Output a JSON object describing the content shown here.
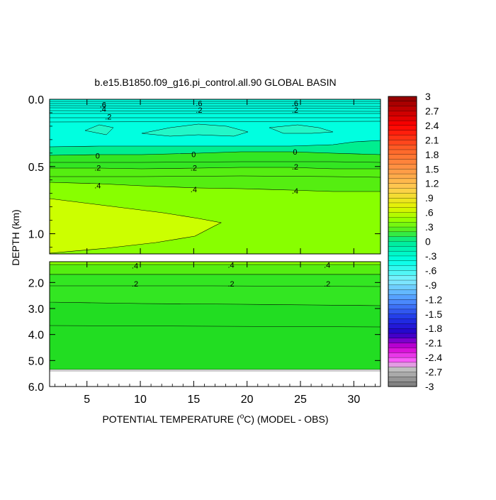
{
  "chart_data": {
    "type": "contour",
    "title": "b.e15.B1850.f09_g16.pi_control.all.90 GLOBAL BASIN",
    "xlabel": "POTENTIAL TEMPERATURE (",
    "xlabel_unit": "C) (MODEL - OBS)",
    "xlabel_degree": "o",
    "ylabel": "DEPTH (km)",
    "x_ticks": [
      "5",
      "10",
      "15",
      "20",
      "25",
      "30"
    ],
    "x_tick_values": [
      5,
      10,
      15,
      20,
      25,
      30
    ],
    "xlim": [
      1.5,
      32.5
    ],
    "upper_panel": {
      "ylim": [
        0.0,
        1.15
      ],
      "y_ticks": [
        "0.0",
        "0.5",
        "1.0"
      ],
      "y_tick_values": [
        0.0,
        0.5,
        1.0
      ]
    },
    "lower_panel": {
      "ylim": [
        1.2,
        6.0
      ],
      "y_ticks": [
        "2.0",
        "3.0",
        "4.0",
        "5.0",
        "6.0"
      ],
      "y_tick_values": [
        2.0,
        3.0,
        4.0,
        5.0,
        6.0
      ]
    },
    "upper_contour_labels": [
      {
        "text": ".6",
        "x": 6.5,
        "depth": 0.04
      },
      {
        "text": ".4",
        "x": 6.5,
        "depth": 0.07
      },
      {
        "text": ".2",
        "x": 7.0,
        "depth": 0.13
      },
      {
        "text": ".6",
        "x": 15.5,
        "depth": 0.03
      },
      {
        "text": ".2",
        "x": 15.5,
        "depth": 0.08
      },
      {
        "text": ".6",
        "x": 24.5,
        "depth": 0.03
      },
      {
        "text": ".2",
        "x": 24.5,
        "depth": 0.08
      },
      {
        "text": "0",
        "x": 6.0,
        "depth": 0.42
      },
      {
        "text": "0",
        "x": 15.0,
        "depth": 0.41
      },
      {
        "text": "0",
        "x": 24.5,
        "depth": 0.39
      },
      {
        "text": ".2",
        "x": 6.0,
        "depth": 0.51
      },
      {
        "text": ".2",
        "x": 15.0,
        "depth": 0.51
      },
      {
        "text": ".2",
        "x": 24.5,
        "depth": 0.5
      },
      {
        "text": ".4",
        "x": 6.0,
        "depth": 0.64
      },
      {
        "text": ".4",
        "x": 15.0,
        "depth": 0.67
      },
      {
        "text": ".4",
        "x": 24.5,
        "depth": 0.68
      }
    ],
    "lower_contour_labels": [
      {
        "text": ".4",
        "x": 9.5,
        "depth": 1.35
      },
      {
        "text": ".4",
        "x": 18.5,
        "depth": 1.32
      },
      {
        "text": ".4",
        "x": 27.5,
        "depth": 1.32
      },
      {
        "text": ".2",
        "x": 9.5,
        "depth": 2.05
      },
      {
        "text": ".2",
        "x": 18.5,
        "depth": 2.05
      },
      {
        "text": ".2",
        "x": 27.5,
        "depth": 2.05
      }
    ],
    "colorbar": {
      "range": [
        -3,
        3
      ],
      "step": 0.1,
      "tick_labels": [
        "3",
        "2.7",
        "2.4",
        "2.1",
        "1.8",
        "1.5",
        "1.2",
        ".9",
        ".6",
        ".3",
        "0",
        "-.3",
        "-.6",
        "-.9",
        "-1.2",
        "-1.5",
        "-1.8",
        "-2.1",
        "-2.4",
        "-2.7",
        "-3"
      ],
      "tick_values": [
        3,
        2.7,
        2.4,
        2.1,
        1.8,
        1.5,
        1.2,
        0.9,
        0.6,
        0.3,
        0,
        -0.3,
        -0.6,
        -0.9,
        -1.2,
        -1.5,
        -1.8,
        -2.1,
        -2.4,
        -2.7,
        -3
      ]
    },
    "colors": {
      "deep_green": "#22dd22",
      "mid_green": "#44ee22",
      "light_green": "#88ff00",
      "yellow_green": "#ccff00",
      "cyan": "#00ffe0",
      "teal_green": "#00ee90",
      "missing_gray": "#cccccc"
    }
  }
}
